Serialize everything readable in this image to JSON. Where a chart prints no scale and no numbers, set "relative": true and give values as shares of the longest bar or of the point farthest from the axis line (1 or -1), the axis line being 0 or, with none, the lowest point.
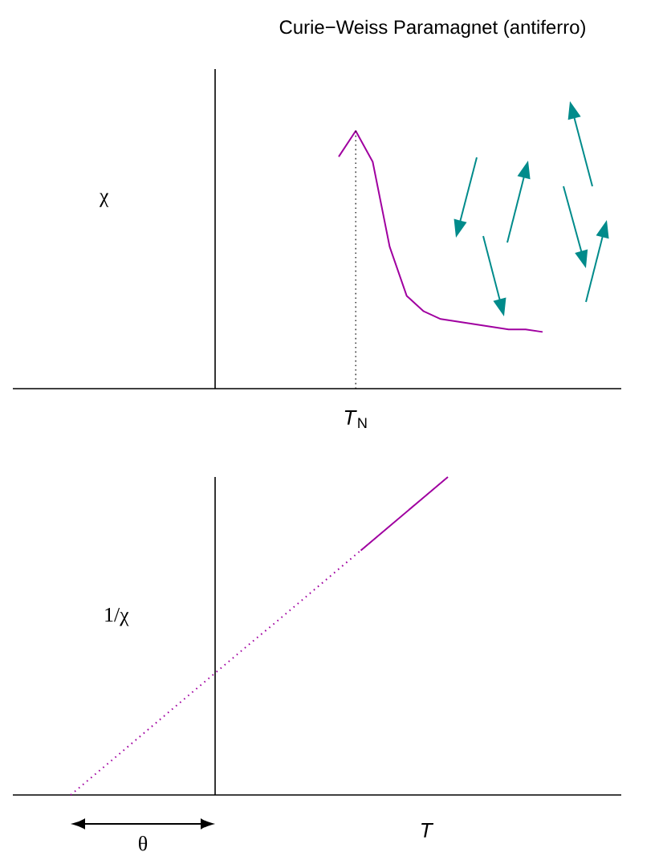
{
  "chart_data": [
    {
      "type": "line",
      "relative": true,
      "title": "Curie−Weiss Paramagnet (antiferro)",
      "ylabel": "χ",
      "tick_labels": false,
      "categories": [
        null,
        null,
        null,
        null,
        null,
        null,
        null,
        null,
        null,
        null,
        null,
        null,
        null
      ],
      "series": [
        {
          "values": [
            0.9,
            1,
            0.88,
            0.55,
            0.36,
            0.3,
            0.27,
            0.26,
            0.25,
            0.24,
            0.23,
            0.23,
            0.22
          ],
          "color": "#a000a0",
          "line_style": "solid"
        }
      ],
      "annotations": [
        "*T*$_{N}$"
      ]
    },
    {
      "type": "line",
      "relative": true,
      "ylabel": "1/χ",
      "xlabel": "*T*",
      "tick_labels": false,
      "categories": [
        null,
        null,
        null,
        null,
        null,
        null,
        null,
        null,
        null,
        null,
        null,
        null,
        null,
        null
      ],
      "series": [
        {
          "values": [
            0,
            0.077,
            0.154,
            0.231,
            0.308,
            0.385,
            0.462,
            0.538,
            0.615,
            0.692,
            0.769,
            null,
            null,
            null
          ],
          "color": "#a000a0",
          "line_style": "dotted"
        },
        {
          "values": [
            null,
            null,
            null,
            null,
            null,
            null,
            null,
            null,
            null,
            null,
            0.769,
            0.846,
            0.923,
            1
          ],
          "color": "#a000a0",
          "line_style": "solid"
        }
      ],
      "annotations": [
        "θ"
      ]
    }
  ]
}
